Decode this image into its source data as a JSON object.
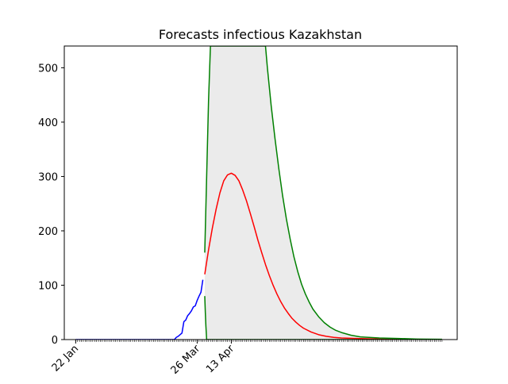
{
  "chart_data": {
    "type": "line",
    "title": "Forecasts infectious Kazakhstan",
    "xlabel": "",
    "ylabel": "",
    "x_tick_labels": [
      {
        "day": 0,
        "label": "22 Jan"
      },
      {
        "day": 64,
        "label": "26 Mar"
      },
      {
        "day": 82,
        "label": "13 Apr"
      }
    ],
    "x_minor_tick_every_days": 1,
    "xlim_days": [
      -6,
      201
    ],
    "x_last_day": 193,
    "ylim": [
      0,
      540
    ],
    "y_ticks": [
      0,
      100,
      200,
      300,
      400,
      500
    ],
    "grid": false,
    "legend": "none",
    "series": [
      {
        "role": "observed",
        "color": "#0000ff",
        "points": [
          [
            0,
            0
          ],
          [
            10,
            0
          ],
          [
            20,
            0
          ],
          [
            30,
            0
          ],
          [
            40,
            0
          ],
          [
            50,
            0
          ],
          [
            52,
            0
          ],
          [
            53,
            4
          ],
          [
            54,
            6
          ],
          [
            55,
            9
          ],
          [
            56,
            12
          ],
          [
            57,
            33
          ],
          [
            58,
            36
          ],
          [
            59,
            44
          ],
          [
            60,
            48
          ],
          [
            61,
            53
          ],
          [
            62,
            60
          ],
          [
            63,
            62
          ],
          [
            64,
            72
          ],
          [
            65,
            80
          ],
          [
            66,
            87
          ],
          [
            67,
            110
          ]
        ]
      },
      {
        "role": "forecast",
        "color": "#ff0000",
        "points": [
          [
            68,
            120
          ],
          [
            70,
            165
          ],
          [
            72,
            205
          ],
          [
            74,
            240
          ],
          [
            76,
            270
          ],
          [
            78,
            292
          ],
          [
            80,
            303
          ],
          [
            82,
            306
          ],
          [
            84,
            302
          ],
          [
            86,
            292
          ],
          [
            88,
            275
          ],
          [
            90,
            255
          ],
          [
            92,
            232
          ],
          [
            94,
            208
          ],
          [
            96,
            183
          ],
          [
            98,
            160
          ],
          [
            100,
            138
          ],
          [
            102,
            118
          ],
          [
            104,
            100
          ],
          [
            106,
            84
          ],
          [
            108,
            70
          ],
          [
            110,
            58
          ],
          [
            112,
            48
          ],
          [
            114,
            39
          ],
          [
            116,
            32
          ],
          [
            118,
            26
          ],
          [
            120,
            21
          ],
          [
            124,
            14
          ],
          [
            128,
            9
          ],
          [
            132,
            6
          ],
          [
            136,
            4
          ],
          [
            140,
            3
          ],
          [
            148,
            2
          ],
          [
            160,
            1
          ],
          [
            175,
            0.5
          ],
          [
            193,
            0.2
          ]
        ]
      },
      {
        "role": "upper-bound",
        "color": "#008000",
        "points": [
          [
            68,
            160
          ],
          [
            69,
            300
          ],
          [
            70,
            440
          ],
          [
            71,
            540
          ],
          [
            100,
            540
          ],
          [
            101,
            500
          ],
          [
            103,
            430
          ],
          [
            105,
            370
          ],
          [
            107,
            315
          ],
          [
            109,
            265
          ],
          [
            111,
            222
          ],
          [
            113,
            185
          ],
          [
            115,
            152
          ],
          [
            117,
            125
          ],
          [
            119,
            102
          ],
          [
            121,
            84
          ],
          [
            123,
            69
          ],
          [
            125,
            56
          ],
          [
            128,
            42
          ],
          [
            131,
            31
          ],
          [
            134,
            23
          ],
          [
            137,
            17
          ],
          [
            140,
            13
          ],
          [
            145,
            8
          ],
          [
            150,
            5
          ],
          [
            160,
            3
          ],
          [
            170,
            2
          ],
          [
            180,
            1
          ],
          [
            193,
            0.5
          ]
        ]
      },
      {
        "role": "lower-bound",
        "color": "#008000",
        "points": [
          [
            68,
            80
          ],
          [
            68.3,
            50
          ],
          [
            68.6,
            25
          ],
          [
            69,
            0
          ],
          [
            100,
            0
          ],
          [
            193,
            0
          ]
        ]
      }
    ]
  }
}
